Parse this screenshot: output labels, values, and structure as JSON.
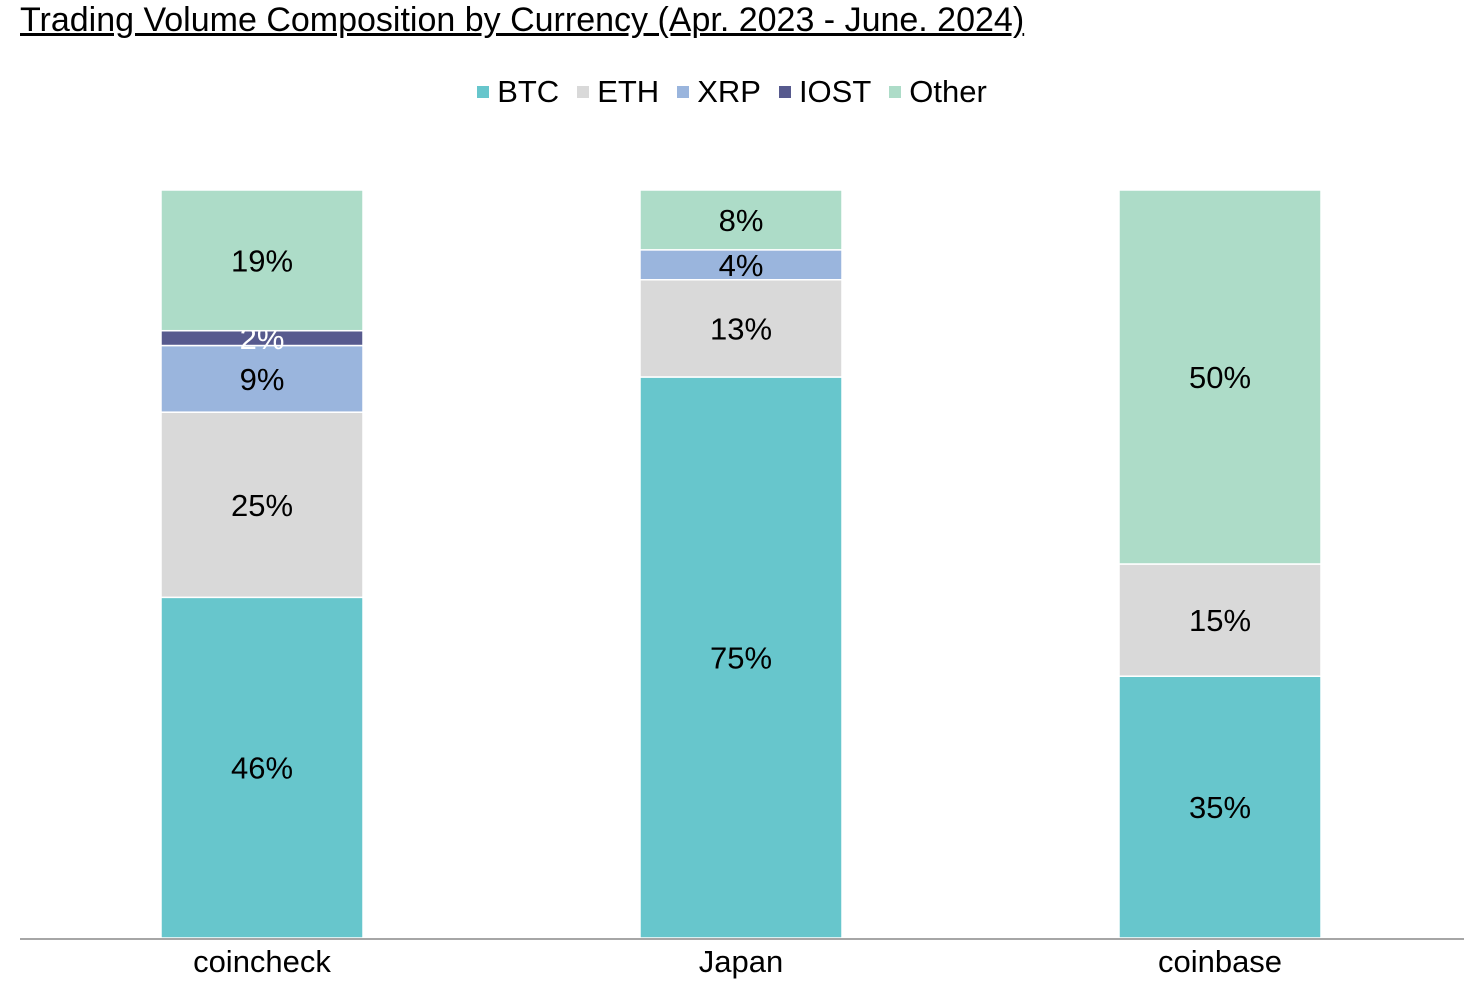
{
  "chart_data": {
    "type": "bar",
    "stacked": true,
    "title": "Trading Volume Composition by Currency (Apr. 2023 - June. 2024)",
    "xlabel": "",
    "ylabel": "",
    "ylim": [
      0,
      100
    ],
    "grid": false,
    "legend_position": "top",
    "categories": [
      "coincheck",
      "Japan",
      "coinbase"
    ],
    "series": [
      {
        "name": "BTC",
        "color": "#67c6cc",
        "values": [
          46,
          75,
          35
        ],
        "labels": [
          "46%",
          "75%",
          "35%"
        ]
      },
      {
        "name": "ETH",
        "color": "#d9d9d9",
        "values": [
          25,
          13,
          15
        ],
        "labels": [
          "25%",
          "13%",
          "15%"
        ]
      },
      {
        "name": "XRP",
        "color": "#9ab5dd",
        "values": [
          9,
          4,
          null
        ],
        "labels": [
          "9%",
          "4%",
          null
        ]
      },
      {
        "name": "IOST",
        "color": "#575a8e",
        "values": [
          2,
          null,
          null
        ],
        "labels": [
          "2%",
          null,
          null
        ]
      },
      {
        "name": "Other",
        "color": "#addcc8",
        "values": [
          19,
          8,
          50
        ],
        "labels": [
          "19%",
          "8%",
          "50%"
        ]
      }
    ]
  }
}
